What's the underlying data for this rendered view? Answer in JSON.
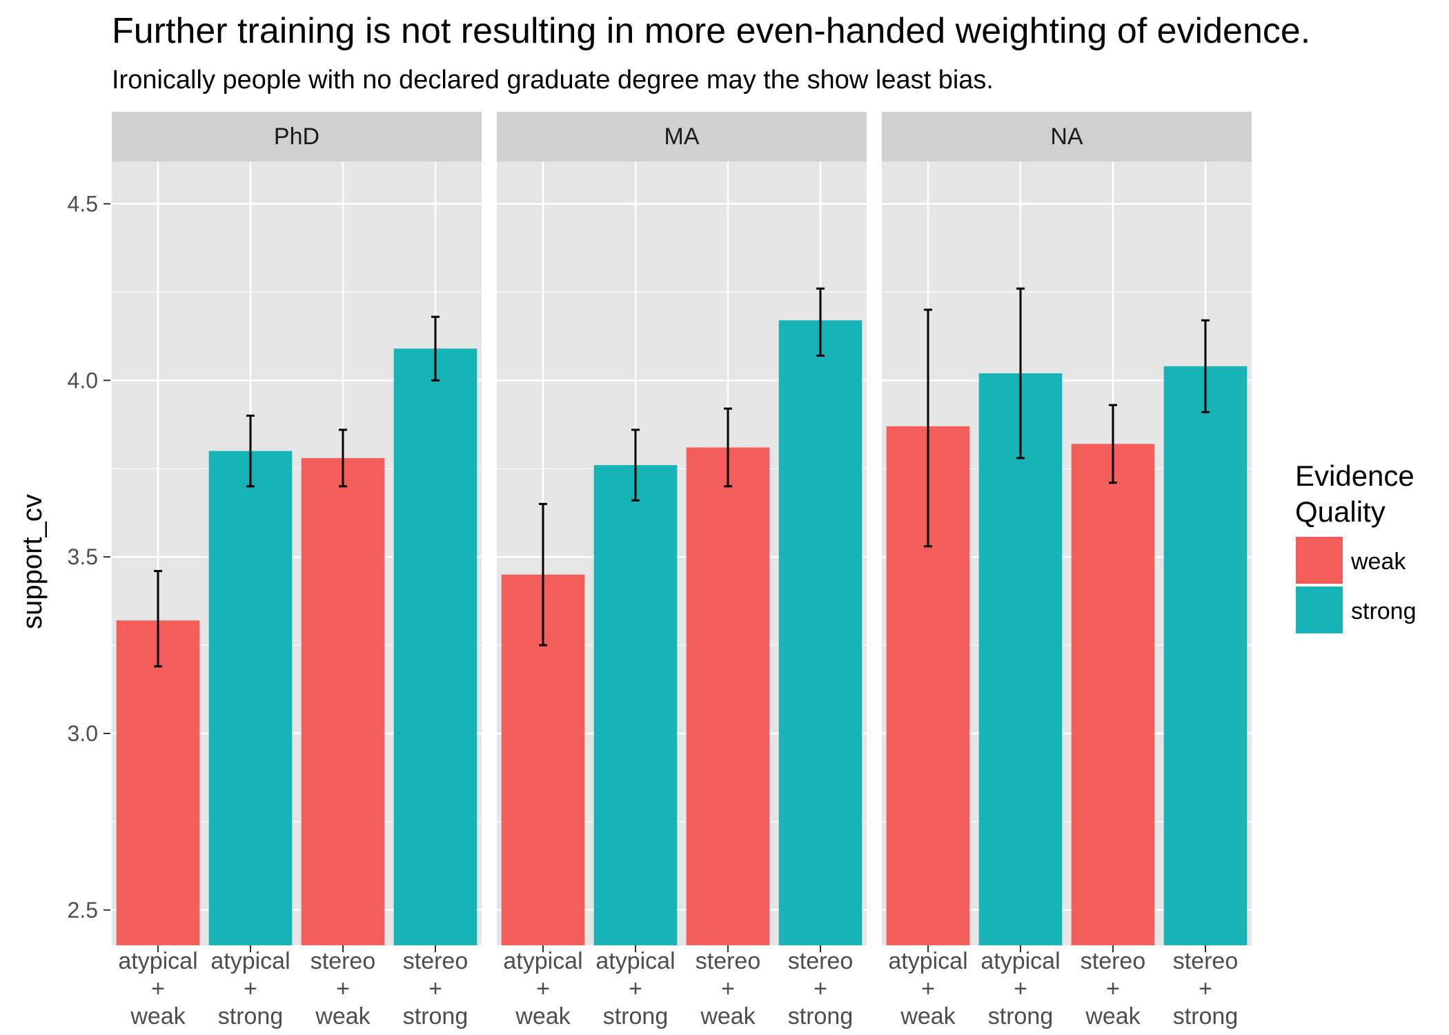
{
  "chart_data": {
    "type": "bar",
    "title": "Further training is not resulting in more even-handed weighting of evidence.",
    "subtitle": "Ironically people with no declared graduate degree may the show least bias.",
    "ylabel": "support_cv",
    "xlabel": "",
    "ylim": [
      2.4,
      4.62
    ],
    "yticks": [
      "2.5",
      "3.0",
      "3.5",
      "4.0",
      "4.5"
    ],
    "categories": [
      [
        "atypical",
        "+",
        "weak"
      ],
      [
        "atypical",
        "+",
        "strong"
      ],
      [
        "stereo",
        "+",
        "weak"
      ],
      [
        "stereo",
        "+",
        "strong"
      ]
    ],
    "category_fill": [
      "weak",
      "strong",
      "weak",
      "strong"
    ],
    "facets": [
      {
        "name": "PhD",
        "values": [
          3.32,
          3.8,
          3.78,
          4.09
        ],
        "err_low": [
          3.19,
          3.7,
          3.7,
          4.0
        ],
        "err_high": [
          3.46,
          3.9,
          3.86,
          4.18
        ]
      },
      {
        "name": "MA",
        "values": [
          3.45,
          3.76,
          3.81,
          4.17
        ],
        "err_low": [
          3.25,
          3.66,
          3.7,
          4.07
        ],
        "err_high": [
          3.65,
          3.86,
          3.92,
          4.26
        ]
      },
      {
        "name": "NA",
        "values": [
          3.87,
          4.02,
          3.82,
          4.04
        ],
        "err_low": [
          3.53,
          3.78,
          3.71,
          3.91
        ],
        "err_high": [
          4.2,
          4.26,
          3.93,
          4.17
        ]
      }
    ],
    "legend": {
      "title_lines": [
        "Evidence",
        "Quality"
      ],
      "position": "right",
      "items": [
        {
          "label": "weak",
          "color": "#F35E5A"
        },
        {
          "label": "strong",
          "color": "#17B3B7"
        }
      ]
    },
    "colors": {
      "weak": "#F35E5A",
      "strong": "#17B3B7",
      "panel_bg": "#E5E5E5",
      "strip_bg": "#D0D0D0",
      "grid": "#FFFFFF"
    }
  }
}
